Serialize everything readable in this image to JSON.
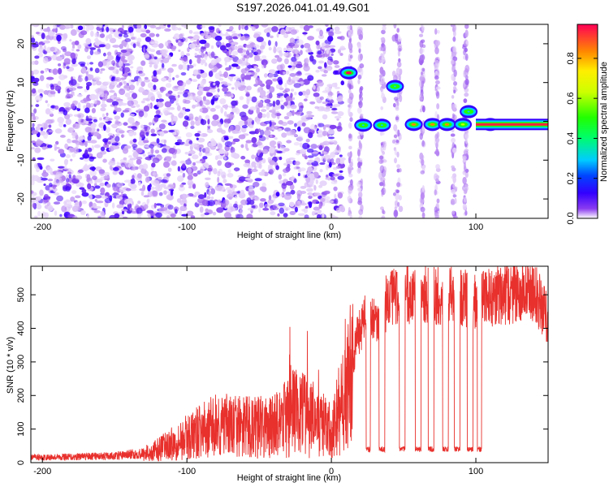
{
  "title": "S197.2026.041.01.49.G01",
  "chart_data": [
    {
      "type": "heatmap",
      "xlabel": "Height of straight line (km)",
      "ylabel": "Frequency (Hz)",
      "xlim": [
        -208,
        150
      ],
      "ylim": [
        -25,
        25
      ],
      "x_ticks": [
        -200,
        -100,
        0,
        100
      ],
      "y_ticks": [
        -20,
        -10,
        0,
        10,
        20
      ],
      "colorbar": {
        "label": "Normalized spectral amplitude",
        "range": [
          0,
          0.97
        ],
        "ticks": [
          0.0,
          0.2,
          0.4,
          0.6,
          0.8
        ]
      },
      "features": [
        {
          "x": 12,
          "y": 12.5,
          "amp": 0.9
        },
        {
          "x": 22,
          "y": -1,
          "amp": 0.35
        },
        {
          "x": 35,
          "y": -1,
          "amp": 0.35
        },
        {
          "x": 44,
          "y": 9,
          "amp": 0.3
        },
        {
          "x": 57,
          "y": -0.8,
          "amp": 0.75
        },
        {
          "x": 70,
          "y": -0.8,
          "amp": 0.75
        },
        {
          "x": 80,
          "y": -0.8,
          "amp": 0.7
        },
        {
          "x": 91,
          "y": -0.8,
          "amp": 0.6
        },
        {
          "x": 95,
          "y": 2.5,
          "amp": 0.3
        },
        {
          "x": 110,
          "y": -0.8,
          "amp": 0.95
        }
      ],
      "band": {
        "x": [
          100,
          150
        ],
        "y": -0.8,
        "amp": 0.95
      }
    },
    {
      "type": "line",
      "xlabel": "Height of straight line (km)",
      "ylabel": "SNR (10 * v/v)",
      "xlim": [
        -208,
        150
      ],
      "ylim": [
        0,
        585
      ],
      "x_ticks": [
        -200,
        -100,
        0,
        100
      ],
      "y_ticks": [
        0,
        100,
        200,
        300,
        400,
        500
      ],
      "series": [
        {
          "color": "#e8302c",
          "envelope": [
            [
              -208,
              15
            ],
            [
              -150,
              20
            ],
            [
              -125,
              30
            ],
            [
              -100,
              75
            ],
            [
              -80,
              110
            ],
            [
              -60,
              105
            ],
            [
              -40,
              105
            ],
            [
              -25,
              150
            ],
            [
              -10,
              125
            ],
            [
              0,
              90
            ],
            [
              10,
              200
            ],
            [
              18,
              380
            ],
            [
              25,
              440
            ],
            [
              32,
              400
            ],
            [
              40,
              500
            ],
            [
              60,
              500
            ],
            [
              80,
              500
            ],
            [
              100,
              480
            ],
            [
              120,
              500
            ],
            [
              140,
              510
            ],
            [
              150,
              430
            ]
          ],
          "dips": [
            [
              24,
              27
            ],
            [
              33,
              37
            ],
            [
              47,
              51
            ],
            [
              58,
              62
            ],
            [
              67,
              71
            ],
            [
              77,
              81
            ],
            [
              85,
              89
            ],
            [
              94,
              98
            ],
            [
              101,
              104
            ]
          ],
          "dip_level": 40
        }
      ]
    }
  ]
}
